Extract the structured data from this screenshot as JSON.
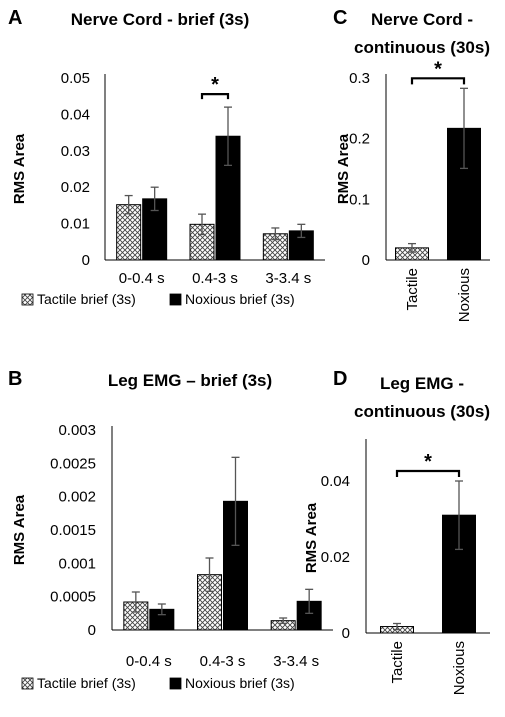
{
  "chart_data": [
    {
      "panel": "A",
      "type": "bar",
      "title": "Nerve Cord - brief (3s)",
      "ylabel": "RMS Area",
      "ylim": [
        0,
        0.05
      ],
      "yticks": [
        "0",
        "0.01",
        "0.02",
        "0.03",
        "0.04",
        "0.05"
      ],
      "categories": [
        "0-0.4 s",
        "0.4-3 s",
        "3-3.4 s"
      ],
      "series": [
        {
          "name": "Tactile brief (3s)",
          "values": [
            0.0152,
            0.0098,
            0.0072
          ],
          "errors": [
            0.0025,
            0.0028,
            0.0016
          ]
        },
        {
          "name": "Noxious brief (3s)",
          "values": [
            0.0168,
            0.034,
            0.008
          ],
          "errors": [
            0.0032,
            0.008,
            0.0018
          ]
        }
      ],
      "significance": {
        "marker": "*",
        "category": "0.4-3 s"
      },
      "legend": "bottom"
    },
    {
      "panel": "B",
      "type": "bar",
      "title": "Leg EMG – brief (3s)",
      "ylabel": "RMS Area",
      "ylim": [
        0,
        0.003
      ],
      "yticks": [
        "0",
        "0.0005",
        "0.001",
        "0.0015",
        "0.002",
        "0.0025",
        "0.003"
      ],
      "categories": [
        "0-0.4 s",
        "0.4-3 s",
        "3-3.4 s"
      ],
      "series": [
        {
          "name": "Tactile brief (3s)",
          "values": [
            0.00042,
            0.00083,
            0.00014
          ],
          "errors": [
            0.00015,
            0.00025,
            4e-05
          ]
        },
        {
          "name": "Noxious brief (3s)",
          "values": [
            0.00031,
            0.00193,
            0.00043
          ],
          "errors": [
            8e-05,
            0.00066,
            0.00018
          ]
        }
      ],
      "legend": "bottom"
    },
    {
      "panel": "C",
      "type": "bar",
      "title_lines": [
        "Nerve Cord -",
        "continuous (30s)"
      ],
      "ylabel": "RMS Area",
      "ylim": [
        0,
        0.3
      ],
      "yticks": [
        "0",
        "0.1",
        "0.2",
        "0.3"
      ],
      "categories": [
        "Tactile",
        "Noxious"
      ],
      "values": [
        0.02,
        0.217
      ],
      "errors": [
        0.007,
        0.066
      ],
      "significance": {
        "marker": "*"
      }
    },
    {
      "panel": "D",
      "type": "bar",
      "title_lines": [
        "Leg EMG -",
        "continuous (30s)"
      ],
      "ylabel": "RMS Area",
      "ylim": [
        0,
        0.05
      ],
      "yticks": [
        "0",
        "0.02",
        "0.04"
      ],
      "categories": [
        "Tactile",
        "Noxious"
      ],
      "values": [
        0.0017,
        0.031
      ],
      "errors": [
        0.0008,
        0.009
      ],
      "significance": {
        "marker": "*"
      }
    }
  ]
}
